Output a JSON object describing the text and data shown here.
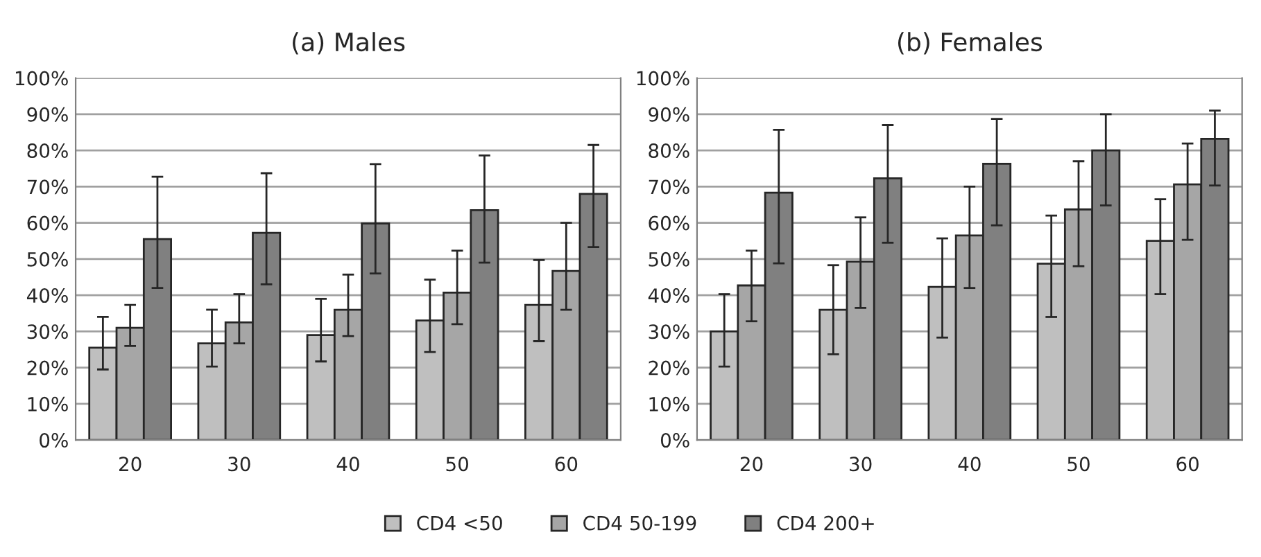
{
  "chart_data": [
    {
      "type": "bar",
      "title": "(a) Males",
      "categories": [
        "20",
        "30",
        "40",
        "50",
        "60"
      ],
      "ylim": [
        0,
        100
      ],
      "yticks": [
        {
          "value": 0,
          "label": "0%"
        },
        {
          "value": 10,
          "label": "10%"
        },
        {
          "value": 20,
          "label": "20%"
        },
        {
          "value": 30,
          "label": "30%"
        },
        {
          "value": 40,
          "label": "40%"
        },
        {
          "value": 50,
          "label": "50%"
        },
        {
          "value": 60,
          "label": "60%"
        },
        {
          "value": 70,
          "label": "70%"
        },
        {
          "value": 80,
          "label": "80%"
        },
        {
          "value": 90,
          "label": "90%"
        },
        {
          "value": 100,
          "label": "100%"
        }
      ],
      "grid": "y",
      "legend": "bottom",
      "series": [
        {
          "name": "CD4 <50",
          "color": "#bfbfbf",
          "values": [
            25.5,
            26.7,
            29,
            33,
            37.3
          ],
          "errors": [
            [
              19.5,
              34
            ],
            [
              20.3,
              36
            ],
            [
              21.7,
              39
            ],
            [
              24.3,
              44.3
            ],
            [
              27.3,
              49.7
            ]
          ]
        },
        {
          "name": "CD4 50-199",
          "color": "#a6a6a6",
          "values": [
            31,
            32.5,
            36,
            40.7,
            46.7
          ],
          "errors": [
            [
              26,
              37.3
            ],
            [
              26.7,
              40.3
            ],
            [
              28.7,
              45.7
            ],
            [
              32,
              52.3
            ],
            [
              36,
              60
            ]
          ]
        },
        {
          "name": "CD4 200+",
          "color": "#808080",
          "values": [
            55.5,
            57.2,
            59.8,
            63.5,
            68
          ],
          "errors": [
            [
              42,
              72.7
            ],
            [
              43,
              73.7
            ],
            [
              46,
              76.2
            ],
            [
              49,
              78.6
            ],
            [
              53.3,
              81.5
            ]
          ]
        }
      ]
    },
    {
      "type": "bar",
      "title": "(b) Females",
      "categories": [
        "20",
        "30",
        "40",
        "50",
        "60"
      ],
      "ylim": [
        0,
        100
      ],
      "yticks": [
        {
          "value": 0,
          "label": "0%"
        },
        {
          "value": 10,
          "label": "10%"
        },
        {
          "value": 20,
          "label": "20%"
        },
        {
          "value": 30,
          "label": "30%"
        },
        {
          "value": 40,
          "label": "40%"
        },
        {
          "value": 50,
          "label": "50%"
        },
        {
          "value": 60,
          "label": "60%"
        },
        {
          "value": 70,
          "label": "70%"
        },
        {
          "value": 80,
          "label": "80%"
        },
        {
          "value": 90,
          "label": "90%"
        },
        {
          "value": 100,
          "label": "100%"
        }
      ],
      "grid": "y",
      "series": [
        {
          "color": "#bfbfbf",
          "values": [
            30,
            36,
            42.3,
            48.7,
            55
          ],
          "errors": [
            [
              20.3,
              40.3
            ],
            [
              23.7,
              48.3
            ],
            [
              28.3,
              55.7
            ],
            [
              34,
              62
            ],
            [
              40.3,
              66.5
            ]
          ]
        },
        {
          "color": "#a6a6a6",
          "values": [
            42.7,
            49.3,
            56.5,
            63.7,
            70.6
          ],
          "errors": [
            [
              32.8,
              52.3
            ],
            [
              36.5,
              61.5
            ],
            [
              42,
              70
            ],
            [
              48,
              77
            ],
            [
              55.3,
              81.9
            ]
          ]
        },
        {
          "color": "#808080",
          "values": [
            68.3,
            72.3,
            76.3,
            80,
            83.2
          ],
          "errors": [
            [
              48.8,
              85.7
            ],
            [
              54.5,
              87
            ],
            [
              59.3,
              88.7
            ],
            [
              64.8,
              90
            ],
            [
              70.3,
              91
            ]
          ]
        }
      ]
    }
  ]
}
